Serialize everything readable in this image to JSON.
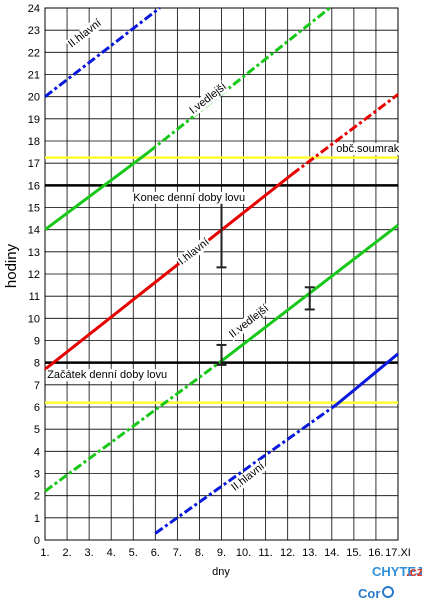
{
  "chart_data": {
    "type": "line",
    "xlabel": "dny",
    "ylabel": "hodiny",
    "x_ticks": [
      "1.",
      "2.",
      "3.",
      "4.",
      "5.",
      "6.",
      "7.",
      "8.",
      "9.",
      "10.",
      "11.",
      "12.",
      "13.",
      "14.",
      "15.",
      "16.",
      "17.XI"
    ],
    "y_ticks": [
      0,
      1,
      2,
      3,
      4,
      5,
      6,
      7,
      8,
      9,
      10,
      11,
      12,
      13,
      14,
      15,
      16,
      17,
      18,
      19,
      20,
      21,
      22,
      23,
      24
    ],
    "xlim": [
      1,
      17
    ],
    "ylim": [
      0,
      24
    ],
    "grid": true,
    "series": [
      {
        "name": "I.hlavní",
        "color": "#e60000",
        "segments": [
          {
            "x": [
              1,
              12.2
            ],
            "y": [
              7.7,
              16.5
            ],
            "style": "solid"
          },
          {
            "x": [
              12.2,
              17
            ],
            "y": [
              16.5,
              20.1
            ],
            "style": "dashdot"
          }
        ]
      },
      {
        "name": "II.hlavní",
        "color": "#0a1adc",
        "segments": [
          {
            "x": [
              6,
              14.2
            ],
            "y": [
              0.3,
              6.1
            ],
            "style": "dashdot"
          },
          {
            "x": [
              14.2,
              17
            ],
            "y": [
              6.1,
              8.4
            ],
            "style": "solid"
          }
        ]
      },
      {
        "name": "I.vedlejší",
        "color": "#18c818",
        "segments": [
          {
            "x": [
              1,
              5.7
            ],
            "y": [
              14.0,
              17.5
            ],
            "style": "solid"
          },
          {
            "x": [
              5.7,
              13.9
            ],
            "y": [
              17.5,
              24.0
            ],
            "style": "dashdot"
          }
        ]
      },
      {
        "name": "II.vedlejší",
        "color": "#18c818",
        "segments": [
          {
            "x": [
              1,
              8.9
            ],
            "y": [
              2.2,
              8.0
            ],
            "style": "dashdot"
          },
          {
            "x": [
              8.9,
              17
            ],
            "y": [
              8.0,
              14.2
            ],
            "style": "solid"
          }
        ]
      },
      {
        "name": "II.hlavní",
        "color": "#0a1adc",
        "segments": [
          {
            "x": [
              1,
              6.2
            ],
            "y": [
              20.0,
              24.0
            ],
            "style": "dashdot"
          }
        ]
      }
    ],
    "reference_lines": [
      {
        "label": "Konec denní doby lovu",
        "y": 16.0,
        "color": "#000000"
      },
      {
        "label": "Začátek denní doby lovu",
        "y": 8.0,
        "color": "#000000"
      },
      {
        "label": "obč.soumrak",
        "y": 17.25,
        "color": "#ffff33"
      },
      {
        "label": "",
        "y": 6.2,
        "color": "#ffff33"
      }
    ],
    "error_bars": [
      {
        "x": 9.0,
        "low": 12.3,
        "high": 15.3
      },
      {
        "x": 13.0,
        "low": 10.4,
        "high": 11.4
      },
      {
        "x": 9.0,
        "low": 7.9,
        "high": 8.8
      }
    ],
    "annotations": [
      {
        "text": "II.hlavní",
        "x": 2.2,
        "y": 22.2,
        "angle": -38
      },
      {
        "text": "I.vedlejší",
        "x": 7.7,
        "y": 19.2,
        "angle": -38
      },
      {
        "text": "obč.soumrak",
        "x": 14.2,
        "y": 17.5,
        "angle": 0
      },
      {
        "text": "Konec denní doby lovu",
        "x": 5.0,
        "y": 15.3,
        "angle": 0
      },
      {
        "text": "I.hlavní",
        "x": 7.2,
        "y": 12.4,
        "angle": -38
      },
      {
        "text": "II.vedlejší",
        "x": 9.5,
        "y": 9.1,
        "angle": -38
      },
      {
        "text": "Začátek denní doby lovu",
        "x": 1.1,
        "y": 7.3,
        "angle": 0
      },
      {
        "text": "II.hlavní",
        "x": 9.6,
        "y": 2.2,
        "angle": -38
      }
    ]
  },
  "watermark": {
    "text_top": "CHYTEJ",
    "text_suffix": ".cz",
    "text_main": "Cor"
  }
}
